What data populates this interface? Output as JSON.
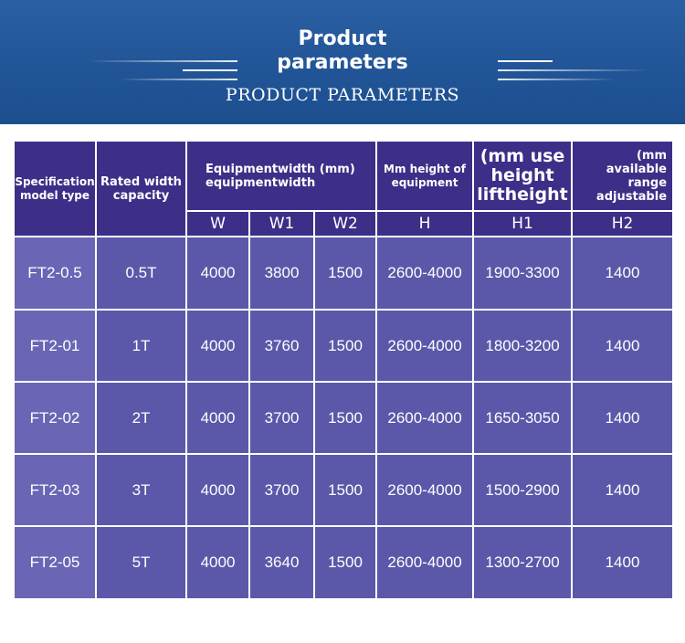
{
  "header": {
    "title_line1": "Product",
    "title_line2": "parameters",
    "subtitle": "PRODUCT  PARAMETERS"
  },
  "table": {
    "headers": {
      "spec": "Specification model type",
      "capacity": "Rated width capacity",
      "width_group": "Equipmentwidth (mm) equipmentwidth",
      "h": "Mm height of equipment",
      "h1": "(mm use height liftheight",
      "h2": "(mm available range adjustable"
    },
    "sub_headers": [
      "W",
      "W1",
      "W2",
      "H",
      "H1",
      "H2"
    ],
    "rows": [
      {
        "model": "FT2-0.5",
        "capacity": "0.5T",
        "w": "4000",
        "w1": "3800",
        "w2": "1500",
        "h": "2600-4000",
        "h1": "1900-3300",
        "h2": "1400"
      },
      {
        "model": "FT2-01",
        "capacity": "1T",
        "w": "4000",
        "w1": "3760",
        "w2": "1500",
        "h": "2600-4000",
        "h1": "1800-3200",
        "h2": "1400"
      },
      {
        "model": "FT2-02",
        "capacity": "2T",
        "w": "4000",
        "w1": "3700",
        "w2": "1500",
        "h": "2600-4000",
        "h1": "1650-3050",
        "h2": "1400"
      },
      {
        "model": "FT2-03",
        "capacity": "3T",
        "w": "4000",
        "w1": "3700",
        "w2": "1500",
        "h": "2600-4000",
        "h1": "1500-2900",
        "h2": "1400"
      },
      {
        "model": "FT2-05",
        "capacity": "5T",
        "w": "4000",
        "w1": "3640",
        "w2": "1500",
        "h": "2600-4000",
        "h1": "1300-2700",
        "h2": "1400"
      }
    ]
  },
  "colors": {
    "banner": "#215597",
    "header_cell": "#3d2f88",
    "body_cell": "#5b58a9"
  }
}
